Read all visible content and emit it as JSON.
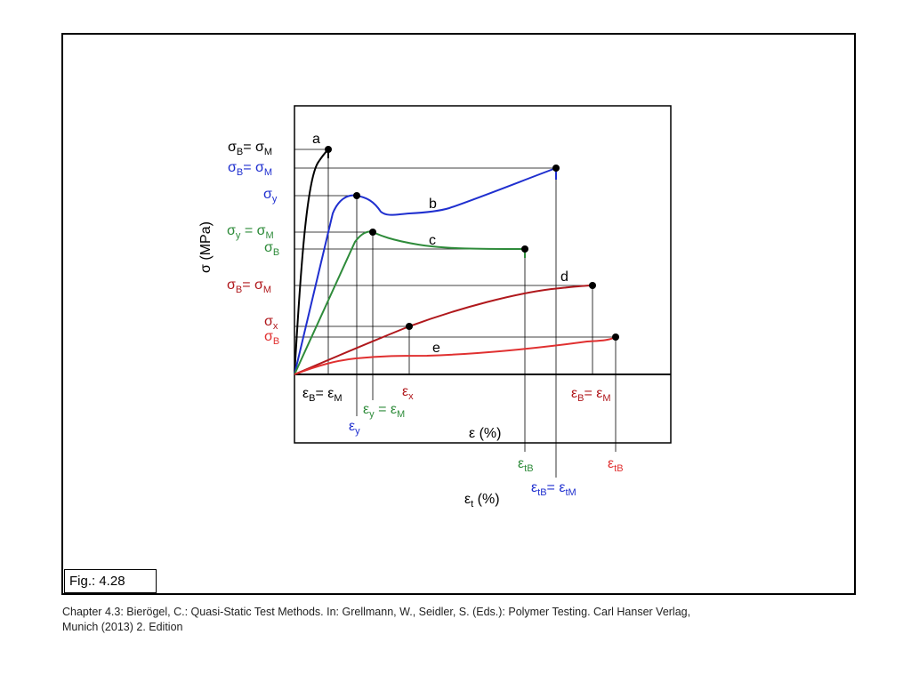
{
  "figure": {
    "fig_label": "Fig.: 4.28",
    "caption_line1": "Chapter 4.3: Bierögel, C.: Quasi-Static Test Methods. In: Grellmann, W., Seidler, S. (Eds.): Polymer Testing. Carl Hanser Verlag,",
    "caption_line2": "Munich (2013) 2. Edition"
  },
  "axes": {
    "y_axis": "σ (MPa)",
    "x_axis_inner": "ε (%)",
    "x_axis_outer_sym": "ε",
    "x_axis_outer_sub": "t",
    "x_axis_outer_unit": " (%)"
  },
  "curves": [
    {
      "name": "a",
      "color": "#000000"
    },
    {
      "name": "b",
      "color": "#1f2fcf"
    },
    {
      "name": "c",
      "color": "#2e8b3a"
    },
    {
      "name": "d",
      "color": "#b0181c"
    },
    {
      "name": "e",
      "color": "#e03030"
    }
  ],
  "stress_labels": {
    "a_sigmaB": "σ",
    "a_subB": "B",
    "a_eq": "= σ",
    "a_subM": "M",
    "b_sigmaB": "σ",
    "b_subB": "B",
    "b_eq": "= σ",
    "b_subM": "M",
    "b_sigmay": "σ",
    "b_suby": "y",
    "c_sigmay": "σ",
    "c_suby": "y",
    "c_eq": " = σ",
    "c_subM": "M",
    "c_sigmaB": "σ",
    "c_subB": "B",
    "d_sigmaB": "σ",
    "d_subB": "B",
    "d_eq": "= σ",
    "d_subM": "M",
    "x_sigma": "σ",
    "x_sub": "x",
    "e_sigmaB": "σ",
    "e_subB": "B"
  },
  "strain_labels": {
    "a_eps": "ε",
    "a_subB": "B",
    "a_eq": "= ε",
    "a_subM": "M",
    "b_eps": "ε",
    "b_suby": "y",
    "c_eps": "ε",
    "c_suby": "y",
    "c_eq": " = ε",
    "c_subM": "M",
    "x_eps": "ε",
    "x_sub": "x",
    "d_eps": "ε",
    "d_subB": "B",
    "d_eq": "= ε",
    "d_subM": "M",
    "c_tB_eps": "ε",
    "c_tB_sub": "tB",
    "b_tB_eps": "ε",
    "b_tB_sub": "tB",
    "b_tB_eq": "= ε",
    "b_tM_sub": "tM",
    "e_tB_eps": "ε",
    "e_tB_sub": "tB"
  }
}
